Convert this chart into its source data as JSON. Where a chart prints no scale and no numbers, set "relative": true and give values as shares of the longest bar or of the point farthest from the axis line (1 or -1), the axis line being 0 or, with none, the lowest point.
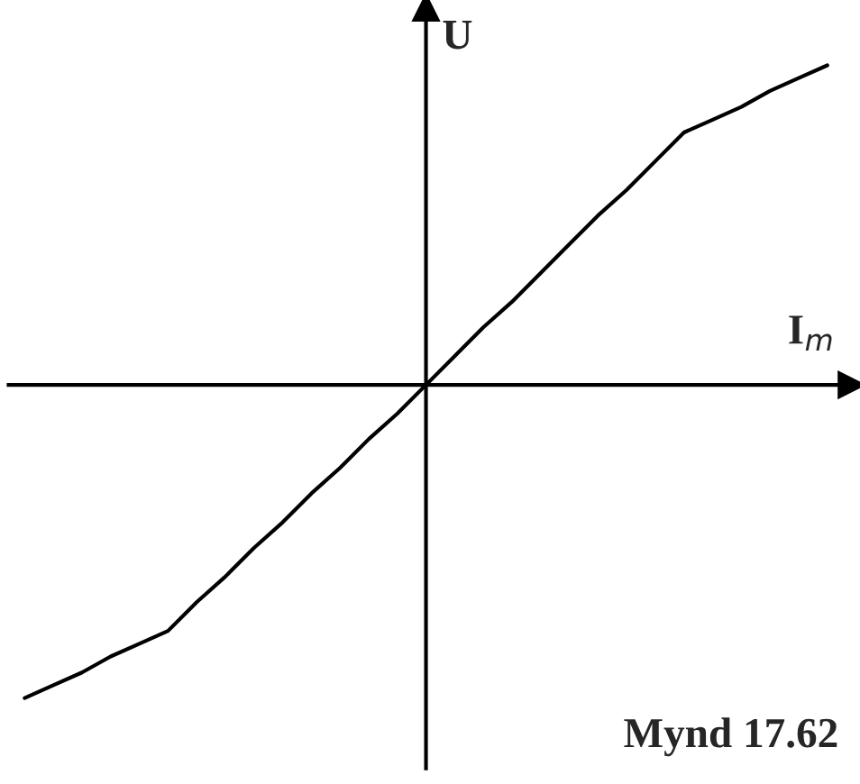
{
  "chart_data": {
    "type": "line",
    "relative": true,
    "xlabel": "I$_{m}$",
    "ylabel": "U",
    "annotations": [
      "Mynd 17.62"
    ],
    "categories": [
      null,
      null,
      null,
      null,
      null,
      null,
      null,
      null,
      null,
      null,
      null,
      null,
      null,
      null,
      null,
      null,
      null,
      null,
      null,
      null,
      null,
      null,
      null,
      null,
      null,
      null,
      null,
      null,
      null
    ],
    "series": [
      {
        "color": "#000000",
        "values": [
          -0.98,
          -0.94,
          -0.9,
          -0.85,
          -0.81,
          -0.77,
          -0.68,
          -0.6,
          -0.51,
          -0.43,
          -0.34,
          -0.26,
          -0.17,
          -0.09,
          0,
          0.09,
          0.18,
          0.26,
          0.35,
          0.44,
          0.53,
          0.61,
          0.7,
          0.79,
          0.83,
          0.87,
          0.92,
          0.96,
          1
        ]
      }
    ],
    "legend": false,
    "marker": "none",
    "line_style": "solid"
  }
}
